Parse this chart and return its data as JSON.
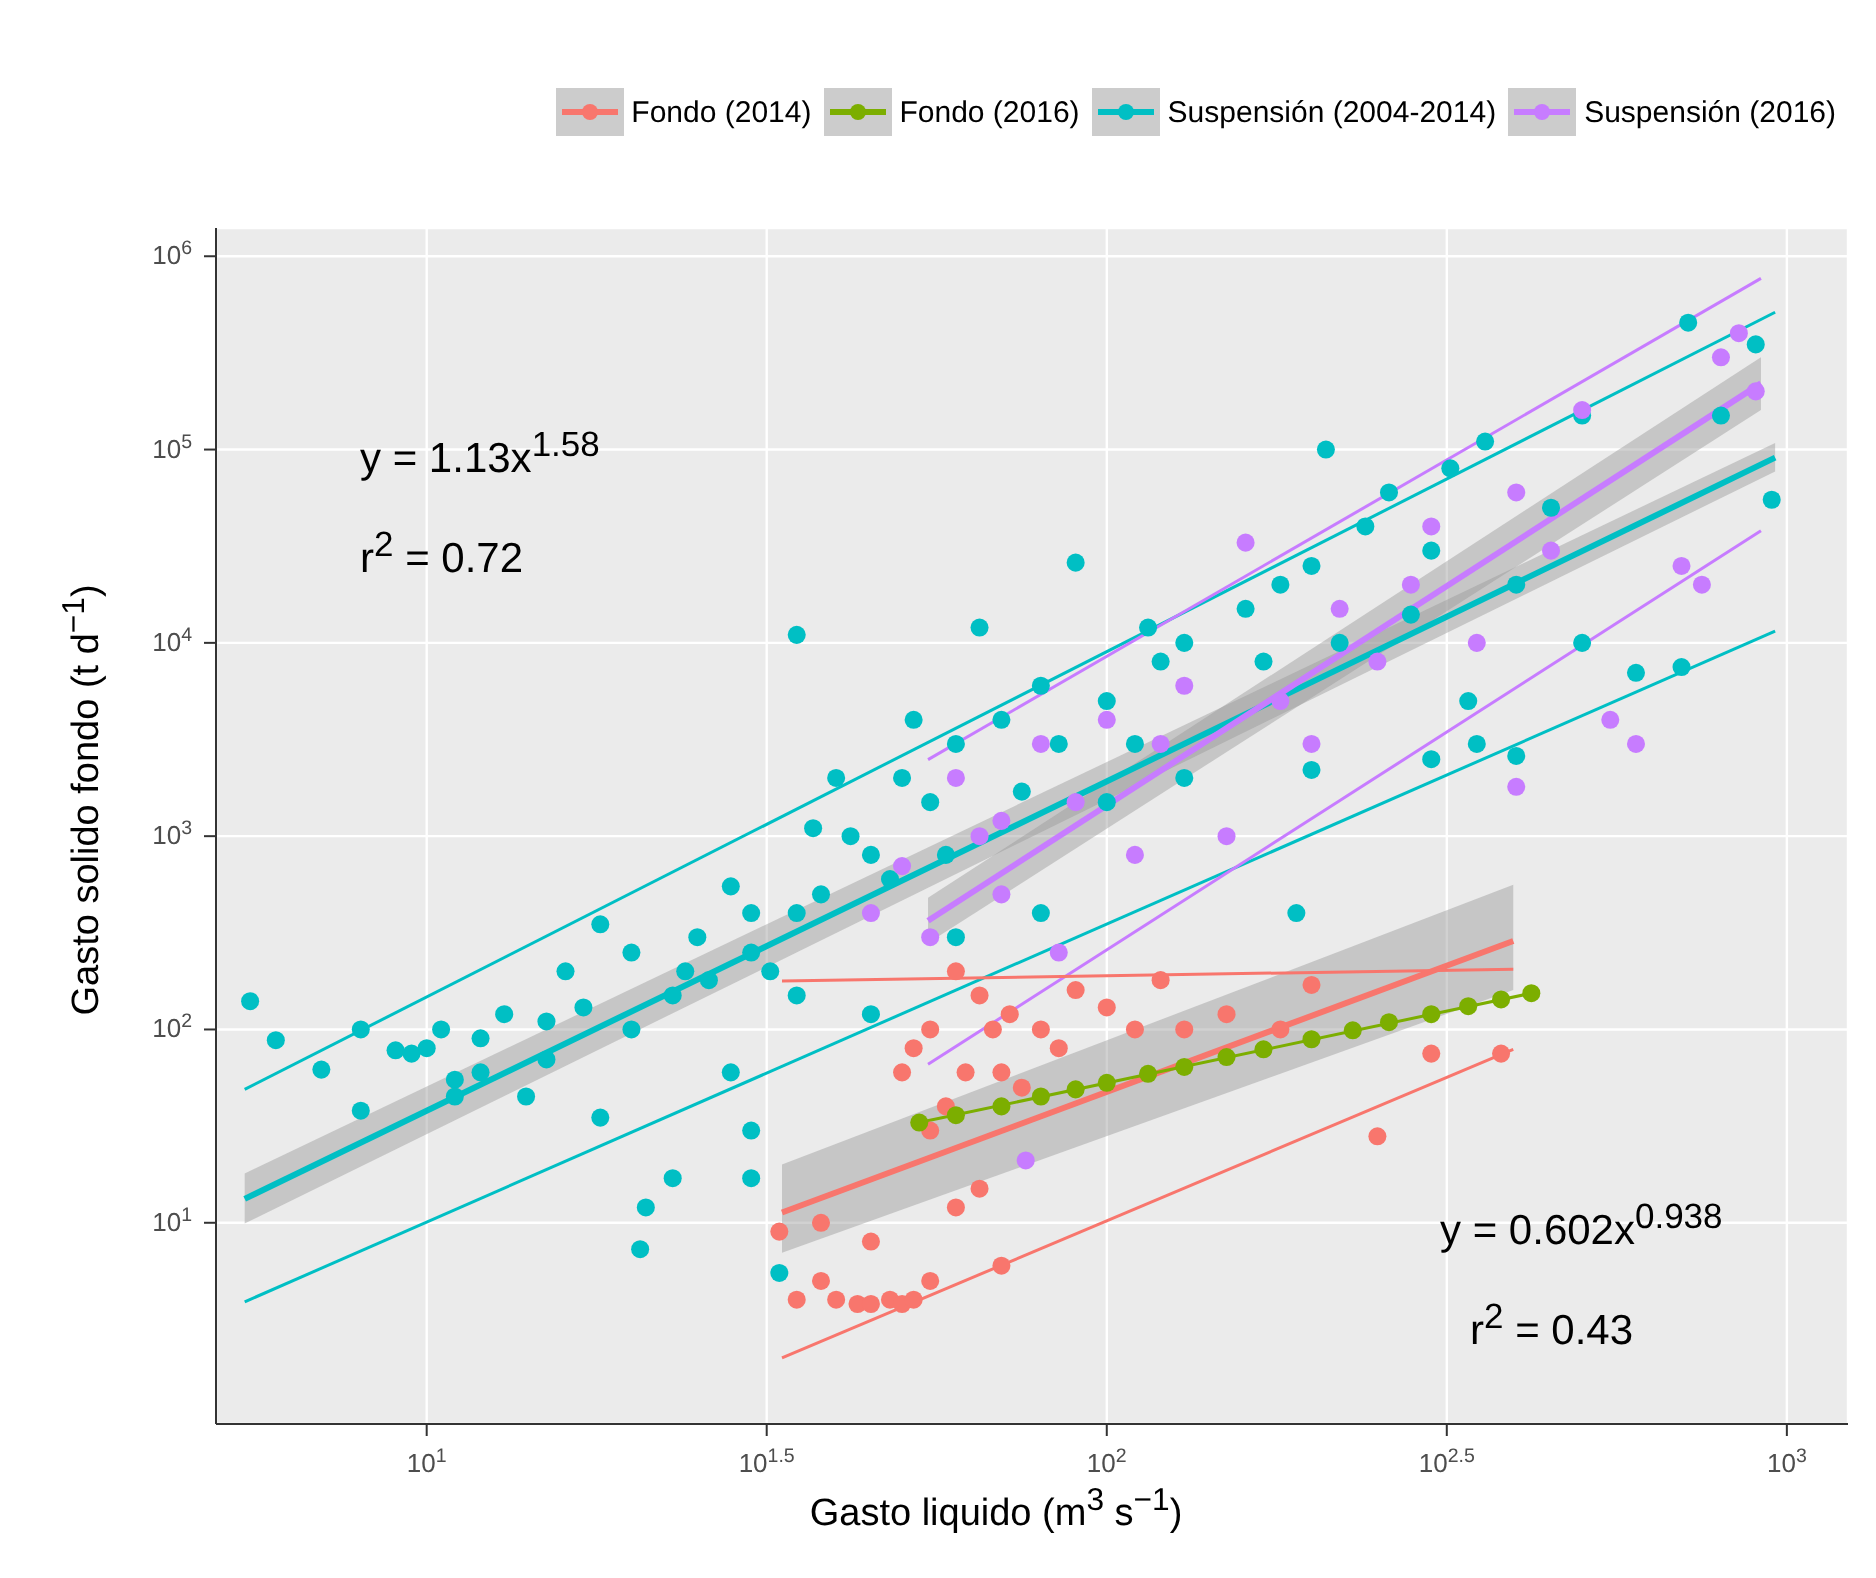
{
  "chart_data": {
    "type": "scatter",
    "xlabel": "Gasto liquido (m$^{3}$ s$^{−1}$)",
    "ylabel": "Gasto solido fondo (t d$^{−1}$)",
    "log": "xy",
    "grid": true,
    "legend": "top",
    "xlim": [
      4.9,
      1230
    ],
    "ylim": [
      0.91,
      1400000
    ],
    "xticks": [
      {
        "value": 10,
        "label": "10$^{1}$"
      },
      {
        "value": 31.62,
        "label": "10$^{1.5}$"
      },
      {
        "value": 100,
        "label": "10$^{2}$"
      },
      {
        "value": 316.2,
        "label": "10$^{2.5}$"
      },
      {
        "value": 1000,
        "label": "10$^{3}$"
      }
    ],
    "yticks": [
      {
        "value": 10,
        "label": "10$^{1}$"
      },
      {
        "value": 100,
        "label": "10$^{2}$"
      },
      {
        "value": 1000,
        "label": "10$^{3}$"
      },
      {
        "value": 10000,
        "label": "10$^{4}$"
      },
      {
        "value": 100000,
        "label": "10$^{5}$"
      },
      {
        "value": 1000000,
        "label": "10$^{6}$"
      }
    ],
    "annotations": [
      "y = 1.13x$^{1.58}$",
      "r$^{2}$ = 0.72",
      "y = 0.602x$^{0.938}$",
      "r$^{2}$ = 0.43"
    ],
    "series": [
      {
        "type": "line",
        "marker": "none",
        "color": "#00bfc4",
        "x": [
          5.4,
          961
        ],
        "values": [
          13.3,
          90800
        ],
        "lower": [
          9.9,
          77000
        ],
        "upper": [
          18,
          108000
        ]
      },
      {
        "type": "line",
        "marker": "none",
        "color": "#00bfc4",
        "x": [
          5.4,
          961
        ],
        "values": [
          49,
          513000
        ]
      },
      {
        "type": "line",
        "marker": "none",
        "color": "#00bfc4",
        "x": [
          5.4,
          961
        ],
        "values": [
          3.9,
          11500
        ]
      },
      {
        "type": "line",
        "marker": "none",
        "color": "#c77cff",
        "x": [
          54.6,
          916
        ],
        "values": [
          365,
          220000
        ],
        "lower": [
          280,
          160000
        ],
        "upper": [
          480,
          300000
        ]
      },
      {
        "type": "line",
        "marker": "none",
        "color": "#c77cff",
        "x": [
          54.6,
          916
        ],
        "values": [
          2490,
          768000
        ]
      },
      {
        "type": "line",
        "marker": "none",
        "color": "#c77cff",
        "x": [
          54.6,
          916
        ],
        "values": [
          66,
          38000
        ]
      },
      {
        "type": "line",
        "marker": "none",
        "color": "#f8766d",
        "x": [
          33.3,
          396
        ],
        "values": [
          11.3,
          287
        ],
        "lower": [
          7,
          160
        ],
        "upper": [
          20,
          560
        ]
      },
      {
        "type": "line",
        "marker": "none",
        "color": "#f8766d",
        "x": [
          33.3,
          396
        ],
        "values": [
          178,
          205
        ]
      },
      {
        "type": "line",
        "marker": "none",
        "color": "#f8766d",
        "x": [
          33.3,
          396
        ],
        "values": [
          2,
          79
        ]
      },
      {
        "type": "line",
        "marker": "none",
        "color": "#7cae00",
        "x": [
          53,
          421
        ],
        "values": [
          33,
          154
        ]
      },
      {
        "name": "Fondo (2014)",
        "marker": "circle",
        "color": "#f8766d",
        "x": [
          33,
          35,
          38,
          40,
          43,
          45,
          48,
          50,
          52,
          55,
          38,
          45,
          50,
          52,
          55,
          58,
          60,
          62,
          65,
          68,
          70,
          72,
          75,
          80,
          85,
          90,
          100,
          110,
          120,
          130,
          150,
          180,
          200,
          250,
          300,
          380,
          60,
          65,
          70,
          55
        ],
        "values": [
          9,
          4,
          5,
          4,
          3.8,
          3.8,
          4,
          3.8,
          4,
          5,
          10,
          8,
          60,
          80,
          100,
          40,
          200,
          60,
          150,
          100,
          60,
          120,
          50,
          100,
          80,
          160,
          130,
          100,
          180,
          100,
          120,
          100,
          170,
          28,
          75,
          75,
          12,
          15,
          6,
          30
        ]
      },
      {
        "name": "Fondo (2016)",
        "marker": "circle",
        "color": "#7cae00",
        "x": [
          53,
          60,
          70,
          80,
          90,
          100,
          115,
          130,
          150,
          170,
          200,
          230,
          260,
          300,
          340,
          380,
          421
        ],
        "values": [
          33,
          36,
          40,
          45,
          49,
          53,
          59,
          64,
          72,
          79,
          89,
          99,
          109,
          120,
          132,
          143,
          154
        ]
      },
      {
        "name": "Suspensión (2004-2014)",
        "marker": "circle",
        "color": "#00bfc4",
        "x": [
          5.5,
          6,
          7,
          8,
          8,
          9,
          9.5,
          10,
          10.5,
          11,
          11,
          12,
          12,
          13,
          14,
          15,
          16,
          17,
          18,
          18,
          20,
          20,
          21,
          20.6,
          23,
          24,
          25,
          26,
          28,
          28,
          30,
          30,
          32,
          35,
          35,
          35,
          37,
          38,
          40,
          42,
          45,
          48,
          50,
          52,
          55,
          58,
          60,
          65,
          70,
          75,
          80,
          85,
          90,
          100,
          110,
          115,
          120,
          130,
          190,
          210,
          160,
          170,
          180,
          200,
          220,
          240,
          260,
          280,
          300,
          320,
          340,
          360,
          400,
          450,
          500,
          600,
          716,
          800,
          900,
          950,
          15,
          23,
          30,
          33,
          30,
          45,
          60,
          80,
          100,
          130,
          200,
          300,
          350,
          400,
          500,
          700
        ],
        "values": [
          140,
          88,
          62,
          100,
          38,
          78,
          75,
          80,
          100,
          55,
          45,
          90,
          60,
          120,
          45,
          110,
          200,
          130,
          350,
          35,
          250,
          100,
          12,
          7.3,
          150,
          200,
          300,
          180,
          550,
          60,
          400,
          250,
          200,
          11000,
          400,
          150,
          1100,
          500,
          2000,
          1000,
          800,
          600,
          2000,
          4000,
          1500,
          800,
          3000,
          12000,
          4000,
          1700,
          6000,
          3000,
          26000,
          5000,
          3000,
          12000,
          8000,
          10000,
          400,
          100000,
          15000,
          8000,
          20000,
          25000,
          10000,
          40000,
          60000,
          14000,
          30000,
          80000,
          5000,
          110000,
          20000,
          50000,
          150000,
          7000,
          453000,
          150000,
          350000,
          55000,
          70,
          17,
          30,
          5.5,
          17,
          120,
          300,
          400,
          1500,
          2000,
          2200,
          2500,
          3000,
          2600,
          10000,
          7500
        ]
      },
      {
        "name": "Suspensión (2016)",
        "marker": "circle",
        "color": "#c77cff",
        "x": [
          45,
          50,
          55,
          60,
          65,
          70,
          76,
          80,
          90,
          100,
          110,
          120,
          130,
          150,
          160,
          180,
          200,
          220,
          250,
          280,
          300,
          350,
          400,
          400,
          450,
          500,
          550,
          600,
          700,
          750,
          800,
          850,
          900,
          70,
          85
        ],
        "values": [
          400,
          700,
          300,
          2000,
          1000,
          500,
          21,
          3000,
          1500,
          4000,
          800,
          3000,
          6000,
          1000,
          33000,
          5000,
          3000,
          15000,
          8000,
          20000,
          40000,
          10000,
          1800,
          60000,
          30000,
          160000,
          4000,
          3000,
          25000,
          20000,
          300000,
          400000,
          200000,
          1200,
          250
        ]
      }
    ]
  }
}
